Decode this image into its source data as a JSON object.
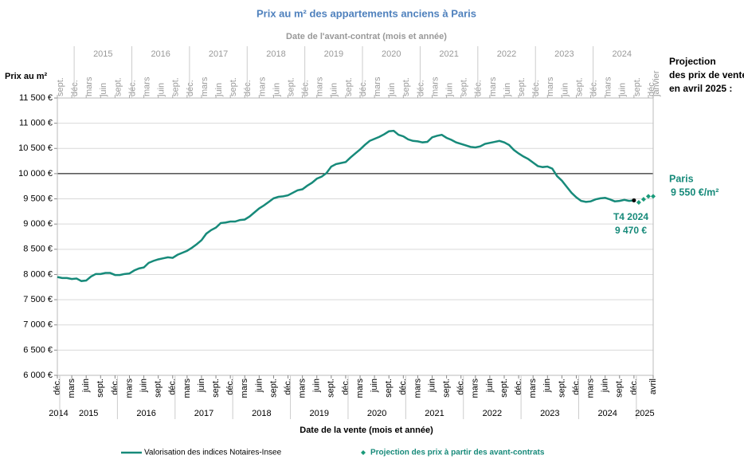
{
  "chart_data": {
    "type": "line",
    "title": "Prix au m² des appartements anciens à Paris",
    "x2_label": "Date de l'avant-contrat  (mois et année)",
    "x_label": "Date de la vente (mois et année)",
    "y_label": "Prix au m²",
    "x": [
      "2014-12",
      "2015-01",
      "2015-02",
      "2015-03",
      "2015-04",
      "2015-05",
      "2015-06",
      "2015-07",
      "2015-08",
      "2015-09",
      "2015-10",
      "2015-11",
      "2015-12",
      "2016-01",
      "2016-02",
      "2016-03",
      "2016-04",
      "2016-05",
      "2016-06",
      "2016-07",
      "2016-08",
      "2016-09",
      "2016-10",
      "2016-11",
      "2016-12",
      "2017-01",
      "2017-02",
      "2017-03",
      "2017-04",
      "2017-05",
      "2017-06",
      "2017-07",
      "2017-08",
      "2017-09",
      "2017-10",
      "2017-11",
      "2017-12",
      "2018-01",
      "2018-02",
      "2018-03",
      "2018-04",
      "2018-05",
      "2018-06",
      "2018-07",
      "2018-08",
      "2018-09",
      "2018-10",
      "2018-11",
      "2018-12",
      "2019-01",
      "2019-02",
      "2019-03",
      "2019-04",
      "2019-05",
      "2019-06",
      "2019-07",
      "2019-08",
      "2019-09",
      "2019-10",
      "2019-11",
      "2019-12",
      "2020-01",
      "2020-02",
      "2020-03",
      "2020-04",
      "2020-05",
      "2020-06",
      "2020-07",
      "2020-08",
      "2020-09",
      "2020-10",
      "2020-11",
      "2020-12",
      "2021-01",
      "2021-02",
      "2021-03",
      "2021-04",
      "2021-05",
      "2021-06",
      "2021-07",
      "2021-08",
      "2021-09",
      "2021-10",
      "2021-11",
      "2021-12",
      "2022-01",
      "2022-02",
      "2022-03",
      "2022-04",
      "2022-05",
      "2022-06",
      "2022-07",
      "2022-08",
      "2022-09",
      "2022-10",
      "2022-11",
      "2022-12",
      "2023-01",
      "2023-02",
      "2023-03",
      "2023-04",
      "2023-05",
      "2023-06",
      "2023-07",
      "2023-08",
      "2023-09",
      "2023-10",
      "2023-11",
      "2023-12",
      "2024-01",
      "2024-02",
      "2024-03",
      "2024-04",
      "2024-05",
      "2024-06",
      "2024-07",
      "2024-08",
      "2024-09",
      "2024-10",
      "2024-11",
      "2024-12",
      "2025-01",
      "2025-02",
      "2025-03",
      "2025-04"
    ],
    "series": [
      {
        "name": "Valorisation des indices Notaires-Insee",
        "color": "#178a7a",
        "values": [
          7950,
          7930,
          7930,
          7910,
          7920,
          7870,
          7880,
          7960,
          8010,
          8010,
          8030,
          8030,
          7990,
          7990,
          8010,
          8020,
          8080,
          8120,
          8140,
          8230,
          8270,
          8300,
          8320,
          8340,
          8330,
          8390,
          8430,
          8470,
          8530,
          8600,
          8680,
          8810,
          8880,
          8930,
          9020,
          9030,
          9050,
          9050,
          9080,
          9090,
          9150,
          9230,
          9310,
          9370,
          9440,
          9510,
          9540,
          9550,
          9570,
          9620,
          9670,
          9690,
          9760,
          9820,
          9900,
          9940,
          10010,
          10140,
          10190,
          10210,
          10230,
          10320,
          10400,
          10480,
          10570,
          10650,
          10690,
          10730,
          10780,
          10840,
          10850,
          10770,
          10740,
          10680,
          10650,
          10640,
          10620,
          10630,
          10720,
          10750,
          10770,
          10710,
          10670,
          10620,
          10590,
          10560,
          10530,
          10520,
          10540,
          10590,
          10610,
          10630,
          10650,
          10620,
          10570,
          10470,
          10400,
          10340,
          10290,
          10220,
          10150,
          10130,
          10140,
          10100,
          9950,
          9860,
          9740,
          9620,
          9530,
          9460,
          9440,
          9450,
          9490,
          9510,
          9520,
          9490,
          9450,
          9460,
          9480,
          9460,
          9470,
          null,
          null,
          null,
          null
        ]
      },
      {
        "name": "Projection des prix à partir des avant-contrats",
        "color": "#1a9a7a",
        "values": [
          null,
          null,
          null,
          null,
          null,
          null,
          null,
          null,
          null,
          null,
          null,
          null,
          null,
          null,
          null,
          null,
          null,
          null,
          null,
          null,
          null,
          null,
          null,
          null,
          null,
          null,
          null,
          null,
          null,
          null,
          null,
          null,
          null,
          null,
          null,
          null,
          null,
          null,
          null,
          null,
          null,
          null,
          null,
          null,
          null,
          null,
          null,
          null,
          null,
          null,
          null,
          null,
          null,
          null,
          null,
          null,
          null,
          null,
          null,
          null,
          null,
          null,
          null,
          null,
          null,
          null,
          null,
          null,
          null,
          null,
          null,
          null,
          null,
          null,
          null,
          null,
          null,
          null,
          null,
          null,
          null,
          null,
          null,
          null,
          null,
          null,
          null,
          null,
          null,
          null,
          null,
          null,
          null,
          null,
          null,
          null,
          null,
          null,
          null,
          null,
          null,
          null,
          null,
          null,
          null,
          null,
          null,
          null,
          null,
          null,
          null,
          null,
          null,
          null,
          null,
          null,
          null,
          null,
          null,
          null,
          null,
          9430,
          9490,
          9550,
          9550
        ]
      }
    ],
    "xlim": [
      "2014-12",
      "2025-04"
    ],
    "x2lim": [
      "2014-09",
      "2025-01"
    ],
    "xticks": [
      {
        "value": "2014-12",
        "label": "déc."
      },
      {
        "value": "2015-03",
        "label": "mars"
      },
      {
        "value": "2015-06",
        "label": "juin"
      },
      {
        "value": "2015-09",
        "label": "sept."
      },
      {
        "value": "2015-12",
        "label": "déc."
      },
      {
        "value": "2016-03",
        "label": "mars"
      },
      {
        "value": "2016-06",
        "label": "juin"
      },
      {
        "value": "2016-09",
        "label": "sept."
      },
      {
        "value": "2016-12",
        "label": "déc."
      },
      {
        "value": "2017-03",
        "label": "mars"
      },
      {
        "value": "2017-06",
        "label": "juin"
      },
      {
        "value": "2017-09",
        "label": "sept."
      },
      {
        "value": "2017-12",
        "label": "déc."
      },
      {
        "value": "2018-03",
        "label": "mars"
      },
      {
        "value": "2018-06",
        "label": "juin"
      },
      {
        "value": "2018-09",
        "label": "sept."
      },
      {
        "value": "2018-12",
        "label": "déc."
      },
      {
        "value": "2019-03",
        "label": "mars"
      },
      {
        "value": "2019-06",
        "label": "juin"
      },
      {
        "value": "2019-09",
        "label": "sept."
      },
      {
        "value": "2019-12",
        "label": "déc."
      },
      {
        "value": "2020-03",
        "label": "mars"
      },
      {
        "value": "2020-06",
        "label": "juin"
      },
      {
        "value": "2020-09",
        "label": "sept."
      },
      {
        "value": "2020-12",
        "label": "déc."
      },
      {
        "value": "2021-03",
        "label": "mars"
      },
      {
        "value": "2021-06",
        "label": "juin"
      },
      {
        "value": "2021-09",
        "label": "sept."
      },
      {
        "value": "2021-12",
        "label": "déc."
      },
      {
        "value": "2022-03",
        "label": "mars"
      },
      {
        "value": "2022-06",
        "label": "juin"
      },
      {
        "value": "2022-09",
        "label": "sept."
      },
      {
        "value": "2022-12",
        "label": "déc."
      },
      {
        "value": "2023-03",
        "label": "mars"
      },
      {
        "value": "2023-06",
        "label": "juin"
      },
      {
        "value": "2023-09",
        "label": "sept."
      },
      {
        "value": "2023-12",
        "label": "déc."
      },
      {
        "value": "2024-03",
        "label": "mars"
      },
      {
        "value": "2024-06",
        "label": "juin"
      },
      {
        "value": "2024-09",
        "label": "sept."
      },
      {
        "value": "2024-12",
        "label": "déc."
      },
      {
        "value": "2025-04",
        "label": "avril"
      }
    ],
    "x_years": [
      {
        "value": "2014",
        "label": "2014"
      },
      {
        "value": "2015",
        "label": "2015"
      },
      {
        "value": "2016",
        "label": "2016"
      },
      {
        "value": "2017",
        "label": "2017"
      },
      {
        "value": "2018",
        "label": "2018"
      },
      {
        "value": "2019",
        "label": "2019"
      },
      {
        "value": "2020",
        "label": "2020"
      },
      {
        "value": "2021",
        "label": "2021"
      },
      {
        "value": "2022",
        "label": "2022"
      },
      {
        "value": "2023",
        "label": "2023"
      },
      {
        "value": "2024",
        "label": "2024"
      },
      {
        "value": "2025",
        "label": "2025"
      }
    ],
    "x2ticks": [
      {
        "value": "2014-09",
        "label": "sept."
      },
      {
        "value": "2014-12",
        "label": "déc."
      },
      {
        "value": "2015-03",
        "label": "mars"
      },
      {
        "value": "2015-06",
        "label": "juin"
      },
      {
        "value": "2015-09",
        "label": "sept."
      },
      {
        "value": "2015-12",
        "label": "déc."
      },
      {
        "value": "2016-03",
        "label": "mars"
      },
      {
        "value": "2016-06",
        "label": "juin"
      },
      {
        "value": "2016-09",
        "label": "sept."
      },
      {
        "value": "2016-12",
        "label": "déc."
      },
      {
        "value": "2017-03",
        "label": "mars"
      },
      {
        "value": "2017-06",
        "label": "juin"
      },
      {
        "value": "2017-09",
        "label": "sept."
      },
      {
        "value": "2017-12",
        "label": "déc."
      },
      {
        "value": "2018-03",
        "label": "mars"
      },
      {
        "value": "2018-06",
        "label": "juin"
      },
      {
        "value": "2018-09",
        "label": "sept."
      },
      {
        "value": "2018-12",
        "label": "déc."
      },
      {
        "value": "2019-03",
        "label": "mars"
      },
      {
        "value": "2019-06",
        "label": "juin"
      },
      {
        "value": "2019-09",
        "label": "sept."
      },
      {
        "value": "2019-12",
        "label": "déc."
      },
      {
        "value": "2020-03",
        "label": "mars"
      },
      {
        "value": "2020-06",
        "label": "juin"
      },
      {
        "value": "2020-09",
        "label": "sept."
      },
      {
        "value": "2020-12",
        "label": "déc."
      },
      {
        "value": "2021-03",
        "label": "mars"
      },
      {
        "value": "2021-06",
        "label": "juin"
      },
      {
        "value": "2021-09",
        "label": "sept."
      },
      {
        "value": "2021-12",
        "label": "déc."
      },
      {
        "value": "2022-03",
        "label": "mars"
      },
      {
        "value": "2022-06",
        "label": "juin"
      },
      {
        "value": "2022-09",
        "label": "sept."
      },
      {
        "value": "2022-12",
        "label": "déc."
      },
      {
        "value": "2023-03",
        "label": "mars"
      },
      {
        "value": "2023-06",
        "label": "juin"
      },
      {
        "value": "2023-09",
        "label": "sept."
      },
      {
        "value": "2023-12",
        "label": "déc."
      },
      {
        "value": "2024-03",
        "label": "mars"
      },
      {
        "value": "2024-06",
        "label": "juin"
      },
      {
        "value": "2024-09",
        "label": "sept."
      },
      {
        "value": "2024-12",
        "label": "déc."
      },
      {
        "value": "2025-01",
        "label": "janvier"
      }
    ],
    "x2_years": [
      {
        "value": "2015",
        "label": "2015"
      },
      {
        "value": "2016",
        "label": "2016"
      },
      {
        "value": "2017",
        "label": "2017"
      },
      {
        "value": "2018",
        "label": "2018"
      },
      {
        "value": "2019",
        "label": "2019"
      },
      {
        "value": "2020",
        "label": "2020"
      },
      {
        "value": "2021",
        "label": "2021"
      },
      {
        "value": "2022",
        "label": "2022"
      },
      {
        "value": "2023",
        "label": "2023"
      },
      {
        "value": "2024",
        "label": "2024"
      }
    ],
    "ylim": [
      6000,
      11500
    ],
    "yticks": [
      {
        "value": 6000,
        "label": "6 000 €"
      },
      {
        "value": 6500,
        "label": "6 500 €"
      },
      {
        "value": 7000,
        "label": "7 000 €"
      },
      {
        "value": 7500,
        "label": "7 500 €"
      },
      {
        "value": 8000,
        "label": "8 000 €"
      },
      {
        "value": 8500,
        "label": "8 500 €"
      },
      {
        "value": 9000,
        "label": "9 000 €"
      },
      {
        "value": 9500,
        "label": "9 500 €"
      },
      {
        "value": 10000,
        "label": "10 000 €"
      },
      {
        "value": 10500,
        "label": "10 500 €"
      },
      {
        "value": 11000,
        "label": "11 000 €"
      },
      {
        "value": 11500,
        "label": "11 500 €"
      }
    ],
    "grid": true,
    "reference_line": 10000,
    "annotations": {
      "last_point": [
        "T4 2024",
        "9 470 €"
      ],
      "projection_title": [
        "Projection",
        "des prix de vente",
        "en avril 2025 :"
      ],
      "projection_value": [
        "Paris",
        "9 550 €/m²"
      ]
    },
    "legend": "bottom"
  }
}
